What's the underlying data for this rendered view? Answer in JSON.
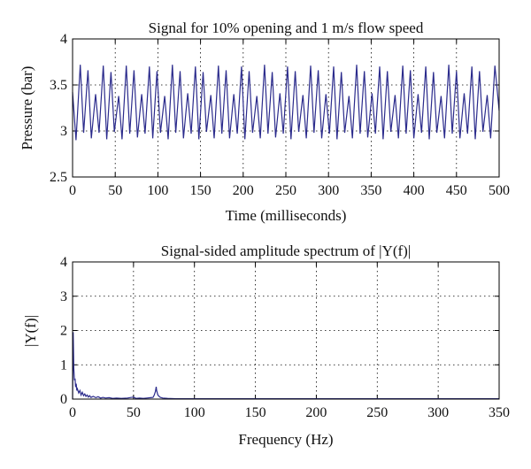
{
  "chart_data": [
    {
      "type": "line",
      "title": "Signal for 10% opening and 1 m/s flow speed",
      "xlabel": "Time (milliseconds)",
      "ylabel": "Pressure (bar)",
      "xlim": [
        0,
        500
      ],
      "ylim": [
        2.5,
        4
      ],
      "xticks": [
        "0",
        "50",
        "100",
        "150",
        "200",
        "250",
        "300",
        "350",
        "400",
        "450",
        "500"
      ],
      "yticks": [
        "2.5",
        "3",
        "3.5",
        "4"
      ],
      "grid": true,
      "series": [
        {
          "color": "#2b2b8c",
          "x": [
            0,
            4,
            9,
            13,
            18,
            22,
            27,
            31,
            36,
            40,
            45,
            49,
            54,
            58,
            63,
            67,
            72,
            76,
            81,
            85,
            90,
            94,
            99,
            103,
            108,
            112,
            117,
            121,
            126,
            130,
            135,
            139,
            144,
            148,
            153,
            157,
            162,
            166,
            171,
            175,
            180,
            184,
            189,
            193,
            198,
            202,
            207,
            211,
            216,
            220,
            225,
            229,
            234,
            238,
            243,
            247,
            252,
            256,
            261,
            265,
            270,
            274,
            279,
            283,
            288,
            292,
            297,
            301,
            306,
            310,
            315,
            319,
            324,
            328,
            333,
            337,
            342,
            346,
            351,
            355,
            360,
            364,
            369,
            373,
            378,
            382,
            387,
            391,
            396,
            400,
            405,
            409,
            414,
            418,
            423,
            427,
            432,
            436,
            441,
            445,
            450,
            454,
            459,
            463,
            468,
            472,
            477,
            481,
            486,
            490,
            495,
            500
          ],
          "values": [
            3.42,
            2.9,
            3.72,
            2.98,
            3.66,
            2.92,
            3.4,
            2.98,
            3.71,
            2.91,
            3.64,
            2.99,
            3.38,
            2.91,
            3.71,
            2.97,
            3.66,
            2.93,
            3.4,
            2.97,
            3.7,
            2.92,
            3.65,
            2.98,
            3.38,
            2.91,
            3.72,
            2.98,
            3.65,
            2.92,
            3.41,
            2.97,
            3.7,
            2.91,
            3.64,
            2.99,
            3.39,
            2.92,
            3.71,
            2.97,
            3.66,
            2.92,
            3.4,
            2.97,
            3.7,
            2.91,
            3.65,
            2.98,
            3.38,
            2.92,
            3.72,
            2.97,
            3.64,
            2.93,
            3.41,
            2.97,
            3.7,
            2.91,
            3.65,
            2.99,
            3.39,
            2.92,
            3.71,
            2.98,
            3.66,
            2.92,
            3.4,
            2.97,
            3.7,
            2.91,
            3.64,
            2.98,
            3.38,
            2.92,
            3.72,
            2.97,
            3.65,
            2.93,
            3.41,
            2.97,
            3.7,
            2.91,
            3.65,
            2.99,
            3.39,
            2.92,
            3.71,
            2.97,
            3.66,
            2.92,
            3.4,
            2.98,
            3.7,
            2.91,
            3.64,
            2.98,
            3.38,
            2.92,
            3.72,
            2.97,
            3.65,
            2.92,
            3.41,
            2.97,
            3.7,
            2.91,
            3.65,
            2.99,
            3.39,
            2.92,
            3.71,
            3.22
          ]
        }
      ]
    },
    {
      "type": "line",
      "title": "Signal-sided amplitude spectrum of |Y(f)|",
      "xlabel": "Frequency (Hz)",
      "ylabel": "|Y(f)|",
      "xlim": [
        0,
        350
      ],
      "ylim": [
        0,
        4
      ],
      "xticks": [
        "0",
        "50",
        "100",
        "150",
        "200",
        "250",
        "300",
        "350"
      ],
      "yticks": [
        "0",
        "1",
        "2",
        "3",
        "4"
      ],
      "grid": true,
      "series": [
        {
          "color": "#2b2b8c",
          "x": [
            0,
            0.5,
            1,
            1.5,
            2,
            2.5,
            3,
            3.5,
            4,
            5,
            6,
            7,
            8,
            9,
            10,
            11,
            12,
            13,
            14,
            15,
            17,
            19,
            21,
            23,
            25,
            27,
            30,
            33,
            36,
            40,
            45,
            50,
            52,
            55,
            58,
            61,
            64,
            66,
            67,
            68,
            68.6,
            69,
            70,
            71,
            72,
            74,
            78,
            85,
            100,
            150,
            200,
            250,
            300,
            350
          ],
          "values": [
            0,
            1.95,
            0.9,
            0.55,
            0.6,
            0.35,
            0.45,
            0.25,
            0.3,
            0.18,
            0.25,
            0.12,
            0.2,
            0.1,
            0.15,
            0.08,
            0.12,
            0.06,
            0.1,
            0.05,
            0.08,
            0.04,
            0.07,
            0.03,
            0.05,
            0.03,
            0.04,
            0.02,
            0.03,
            0.02,
            0.03,
            0.06,
            0.02,
            0.03,
            0.02,
            0.03,
            0.04,
            0.05,
            0.12,
            0.22,
            0.36,
            0.25,
            0.12,
            0.08,
            0.05,
            0.03,
            0.02,
            0.01,
            0.01,
            0.01,
            0.01,
            0.01,
            0.01,
            0.01
          ]
        }
      ]
    }
  ]
}
